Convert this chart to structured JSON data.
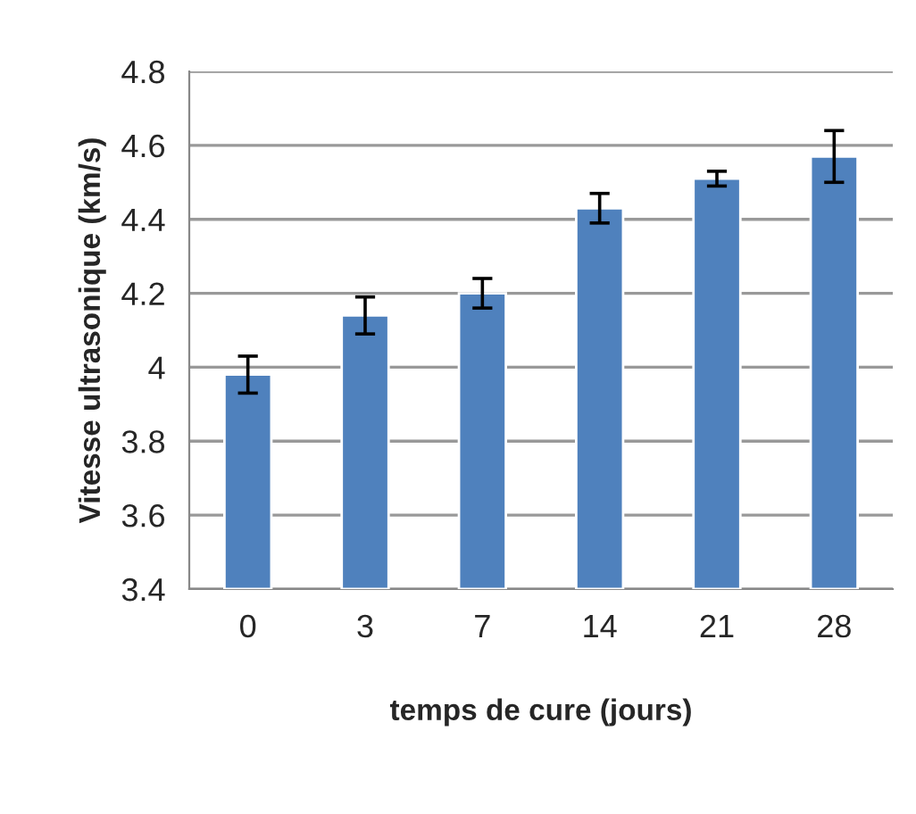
{
  "chart_data": {
    "type": "bar",
    "xlabel": "temps de cure (jours)",
    "ylabel": "Vitesse ultrasonique (km/s)",
    "categories": [
      "0",
      "3",
      "7",
      "14",
      "21",
      "28"
    ],
    "values": [
      3.98,
      4.14,
      4.2,
      4.43,
      4.51,
      4.57
    ],
    "errors": [
      0.05,
      0.05,
      0.04,
      0.04,
      0.02,
      0.07
    ],
    "color": "#4f81bd",
    "ylim": [
      3.4,
      4.8
    ],
    "yticks": [
      {
        "value": 3.4,
        "label": "3.4"
      },
      {
        "value": 3.6,
        "label": "3.6"
      },
      {
        "value": 3.8,
        "label": "3.8"
      },
      {
        "value": 4.0,
        "label": "4"
      },
      {
        "value": 4.2,
        "label": "4.2"
      },
      {
        "value": 4.4,
        "label": "4.4"
      },
      {
        "value": 4.6,
        "label": "4.6"
      },
      {
        "value": 4.8,
        "label": "4.8"
      }
    ],
    "grid": "y",
    "legend": false
  }
}
